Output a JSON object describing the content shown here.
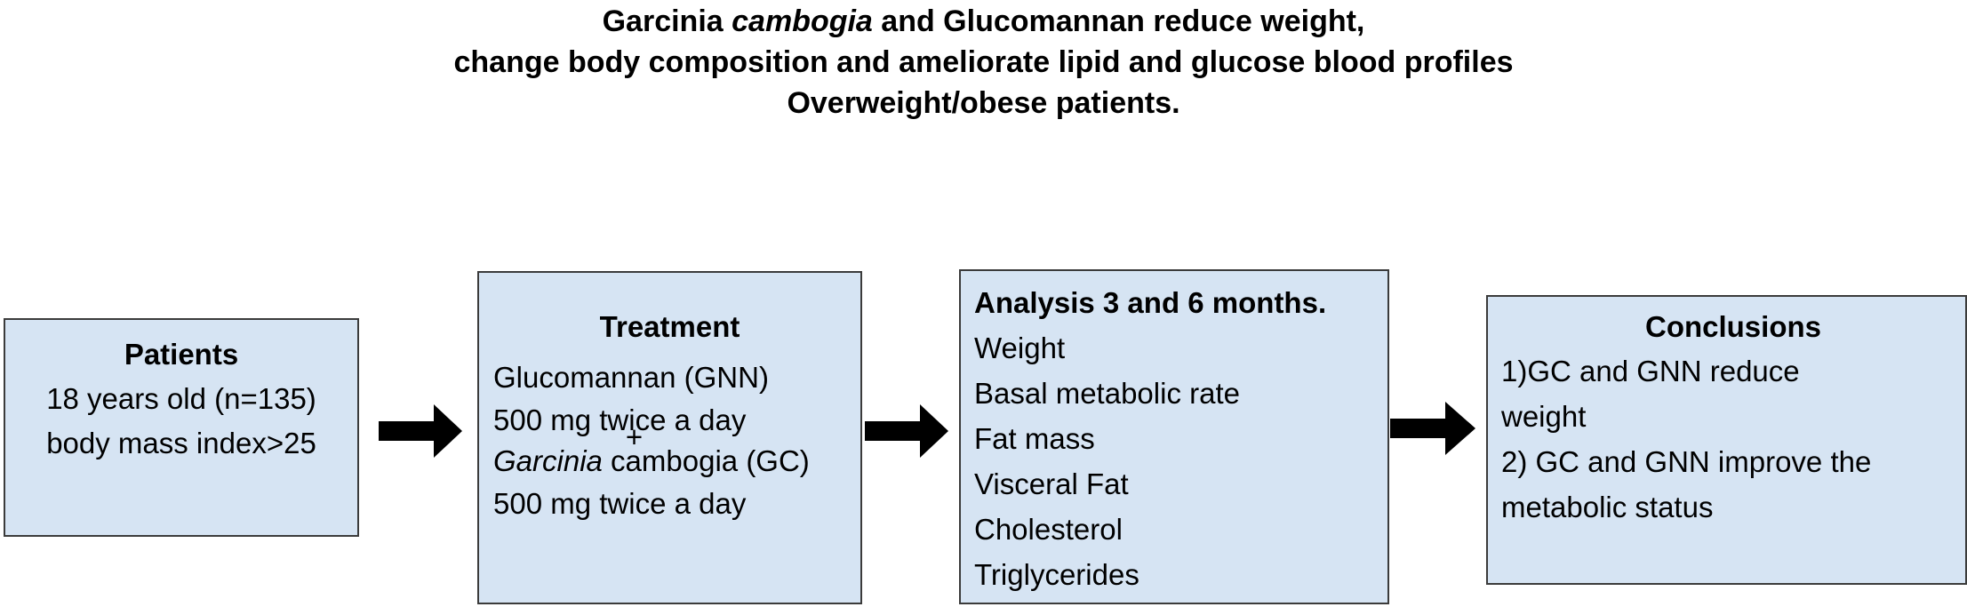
{
  "title": {
    "line1_a": "Garcinia ",
    "line1_b": "cambogia",
    "line1_c": " and Glucomannan reduce weight,",
    "line2": "change body composition and ameliorate lipid and glucose blood profiles",
    "line3": "Overweight/obese patients."
  },
  "patients": {
    "heading": "Patients",
    "lines": [
      "18 years old (n=135)",
      "body mass index>25"
    ]
  },
  "treatment": {
    "heading": "Treatment",
    "line1": "Glucomannan (GNN)",
    "line2": "500 mg twice a day",
    "plus": "+",
    "line3_a": "Garcinia",
    "line3_b": " cambogia (GC)",
    "line4": "500 mg twice a day"
  },
  "analysis": {
    "heading": "Analysis 3 and 6 months.",
    "items": [
      "Weight",
      "Basal metabolic rate",
      "Fat mass",
      "Visceral Fat",
      "Cholesterol",
      "Triglycerides"
    ]
  },
  "conclusions": {
    "heading": "Conclusions",
    "lines": [
      "1)GC and GNN reduce",
      "weight",
      "2) GC and GNN improve the",
      "metabolic status"
    ]
  },
  "colors": {
    "box_fill": "#d6e4f3",
    "box_border": "#3b3b3b",
    "arrow": "#000000"
  },
  "icons": {
    "arrows": "right-arrow-icon"
  }
}
